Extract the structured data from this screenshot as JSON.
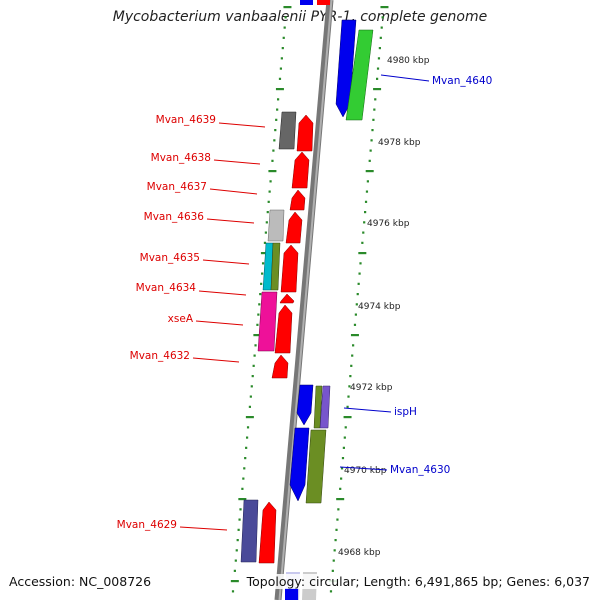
{
  "title": "Mycobacterium vanbaalenii PYR-1, complete genome",
  "footer": {
    "accession": "Accession: NC_008726",
    "summary": "Topology: circular; Length: 6,491,865 bp; Genes: 6,037"
  },
  "colors": {
    "backbone": "#7a7a7a",
    "tick": "#2a8a2a",
    "left_label": "#dd0000",
    "right_label": "#0000cc"
  },
  "scale_labels": [
    "4980 kbp",
    "4978 kbp",
    "4976 kbp",
    "4974 kbp",
    "4972 kbp",
    "4970 kbp",
    "4968 kbp"
  ],
  "gene_labels_left": [
    "Mvan_4639",
    "Mvan_4638",
    "Mvan_4637",
    "Mvan_4636",
    "Mvan_4635",
    "Mvan_4634",
    "xseA",
    "Mvan_4632",
    "Mvan_4629"
  ],
  "gene_labels_right": [
    "Mvan_4640",
    "ispH",
    "Mvan_4630"
  ],
  "legend": [
    {
      "color": "#ff0000"
    },
    {
      "color": "#0000ee"
    },
    {
      "color": "#33cc33"
    },
    {
      "color": "#666666"
    },
    {
      "color": "#bbbbbb"
    },
    {
      "color": "#00bbcc"
    },
    {
      "color": "#ee1199"
    },
    {
      "color": "#6b8e23"
    },
    {
      "color": "#4a4a99"
    },
    {
      "color": "#7755cc"
    }
  ]
}
